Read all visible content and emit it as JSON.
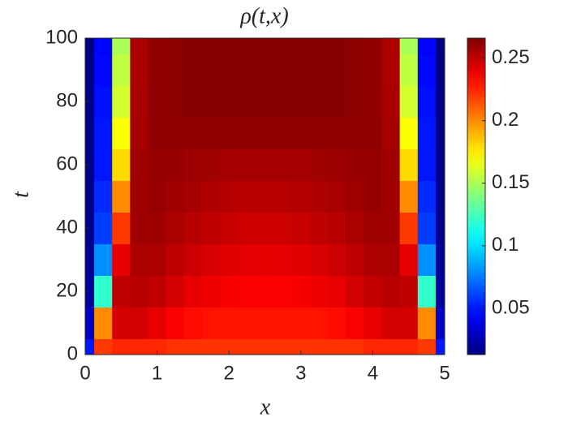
{
  "chart_data": {
    "type": "heatmap",
    "title": "ρ(t,x)",
    "xlabel": "x",
    "ylabel": "t",
    "x": [
      0,
      0.25,
      0.5,
      0.75,
      1,
      1.25,
      1.5,
      1.75,
      2,
      2.25,
      2.5,
      2.75,
      3,
      3.25,
      3.5,
      3.75,
      4,
      4.25,
      4.5,
      4.75,
      5
    ],
    "y": [
      0,
      10,
      20,
      30,
      40,
      50,
      60,
      70,
      80,
      90,
      100
    ],
    "z": [
      [
        0.05,
        0.22,
        0.225,
        0.225,
        0.225,
        0.222,
        0.222,
        0.222,
        0.222,
        0.222,
        0.222,
        0.222,
        0.222,
        0.222,
        0.222,
        0.222,
        0.225,
        0.225,
        0.225,
        0.22,
        0.05
      ],
      [
        0.03,
        0.2,
        0.245,
        0.245,
        0.24,
        0.235,
        0.232,
        0.23,
        0.23,
        0.23,
        0.23,
        0.23,
        0.23,
        0.23,
        0.232,
        0.235,
        0.24,
        0.245,
        0.245,
        0.2,
        0.03
      ],
      [
        0.02,
        0.12,
        0.25,
        0.252,
        0.25,
        0.245,
        0.24,
        0.238,
        0.236,
        0.235,
        0.235,
        0.235,
        0.236,
        0.238,
        0.24,
        0.245,
        0.25,
        0.252,
        0.25,
        0.12,
        0.02
      ],
      [
        0.018,
        0.08,
        0.24,
        0.255,
        0.255,
        0.25,
        0.247,
        0.244,
        0.242,
        0.241,
        0.24,
        0.241,
        0.242,
        0.244,
        0.247,
        0.25,
        0.255,
        0.255,
        0.24,
        0.08,
        0.018
      ],
      [
        0.016,
        0.06,
        0.22,
        0.258,
        0.258,
        0.255,
        0.252,
        0.25,
        0.248,
        0.247,
        0.247,
        0.247,
        0.248,
        0.25,
        0.252,
        0.255,
        0.258,
        0.258,
        0.22,
        0.06,
        0.016
      ],
      [
        0.015,
        0.055,
        0.2,
        0.258,
        0.26,
        0.258,
        0.256,
        0.254,
        0.253,
        0.252,
        0.252,
        0.252,
        0.253,
        0.254,
        0.256,
        0.258,
        0.26,
        0.258,
        0.2,
        0.055,
        0.015
      ],
      [
        0.015,
        0.05,
        0.18,
        0.258,
        0.26,
        0.26,
        0.259,
        0.258,
        0.257,
        0.257,
        0.257,
        0.257,
        0.257,
        0.258,
        0.259,
        0.26,
        0.26,
        0.258,
        0.18,
        0.05,
        0.015
      ],
      [
        0.014,
        0.05,
        0.17,
        0.257,
        0.262,
        0.262,
        0.262,
        0.262,
        0.262,
        0.262,
        0.262,
        0.262,
        0.262,
        0.262,
        0.262,
        0.262,
        0.262,
        0.257,
        0.17,
        0.05,
        0.014
      ],
      [
        0.014,
        0.048,
        0.16,
        0.256,
        0.262,
        0.263,
        0.264,
        0.264,
        0.264,
        0.264,
        0.264,
        0.264,
        0.264,
        0.264,
        0.264,
        0.263,
        0.262,
        0.256,
        0.16,
        0.048,
        0.014
      ],
      [
        0.014,
        0.046,
        0.155,
        0.255,
        0.262,
        0.263,
        0.264,
        0.264,
        0.264,
        0.264,
        0.264,
        0.264,
        0.264,
        0.264,
        0.264,
        0.263,
        0.262,
        0.255,
        0.155,
        0.046,
        0.014
      ],
      [
        0.013,
        0.045,
        0.15,
        0.255,
        0.262,
        0.263,
        0.264,
        0.264,
        0.264,
        0.264,
        0.264,
        0.264,
        0.264,
        0.264,
        0.264,
        0.263,
        0.262,
        0.255,
        0.15,
        0.045,
        0.013
      ]
    ],
    "xlim": [
      0,
      5
    ],
    "ylim": [
      0,
      100
    ],
    "xticks": [
      0,
      1,
      2,
      3,
      4,
      5
    ],
    "yticks": [
      0,
      20,
      40,
      60,
      80,
      100
    ],
    "colormap": "jet",
    "clim": [
      0.013,
      0.266
    ],
    "cticks": [
      0.05,
      0.1,
      0.15,
      0.2,
      0.25
    ]
  }
}
